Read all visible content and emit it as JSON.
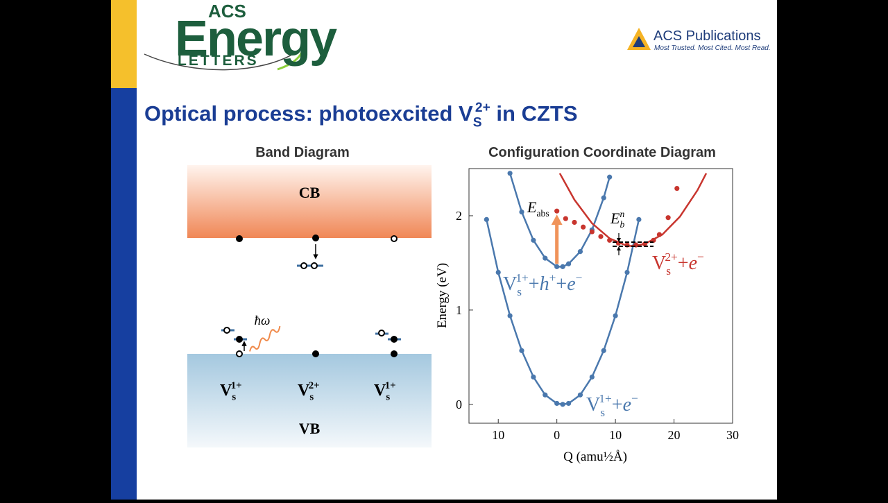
{
  "header": {
    "journal_logo": {
      "top": "ACS",
      "main": "Energy",
      "bottom": "LETTERS"
    },
    "publisher": {
      "name": "ACS Publications",
      "tagline": "Most Trusted. Most Cited. Most Read."
    }
  },
  "title": [
    {
      "text": "Optical process: photoexcited V"
    },
    {
      "text": "S",
      "style": "sub"
    },
    {
      "text": "2+",
      "style": "sup"
    },
    {
      "text": " in CZTS"
    }
  ],
  "band_diagram": {
    "title": "Band Diagram",
    "cb": "CB",
    "vb": "VB",
    "photon": "ħω",
    "defects": [
      [
        {
          "text": "V"
        },
        {
          "text": "s",
          "style": "sub"
        },
        {
          "text": "1+",
          "style": "sup"
        }
      ],
      [
        {
          "text": "V"
        },
        {
          "text": "s",
          "style": "sub"
        },
        {
          "text": "2+",
          "style": "sup"
        }
      ],
      [
        {
          "text": "V"
        },
        {
          "text": "s",
          "style": "sub"
        },
        {
          "text": "1+",
          "style": "sup"
        }
      ]
    ]
  },
  "chart_data": {
    "type": "line",
    "title": "Configuration Coordinate Diagram",
    "xlabel": "Q (amu½Å)",
    "ylabel": "Energy (eV)",
    "xlim": [
      -15,
      30
    ],
    "ylim": [
      -0.2,
      2.5
    ],
    "xticks": [
      {
        "value": -10,
        "label": "10"
      },
      0,
      10,
      20,
      30
    ],
    "yticks": [
      0,
      1,
      2
    ],
    "series": [
      {
        "label": [
          {
            "text": "V"
          },
          {
            "text": "s",
            "style": "sub"
          },
          {
            "text": "1+",
            "style": "sup"
          },
          {
            "text": "+"
          },
          {
            "text": "e",
            "style": "italic"
          },
          {
            "text": "−",
            "style": "sup"
          }
        ],
        "color": "#4a78ad",
        "line": true,
        "markers": true,
        "x": [
          -12,
          -10,
          -8,
          -6,
          -4,
          -2,
          0,
          1,
          2,
          4,
          6,
          8,
          10,
          12,
          14
        ],
        "values": [
          1.96,
          1.4,
          0.94,
          0.57,
          0.29,
          0.1,
          0.01,
          0,
          0.01,
          0.1,
          0.29,
          0.57,
          0.94,
          1.4,
          1.96
        ]
      },
      {
        "label": [
          {
            "text": "V"
          },
          {
            "text": "s",
            "style": "sub"
          },
          {
            "text": "1+",
            "style": "sup"
          },
          {
            "text": "+"
          },
          {
            "text": "h",
            "style": "italic"
          },
          {
            "text": "+",
            "style": "sup"
          },
          {
            "text": "+"
          },
          {
            "text": "e",
            "style": "italic"
          },
          {
            "text": "−",
            "style": "sup"
          }
        ],
        "color": "#4a78ad",
        "line": true,
        "markers": true,
        "x": [
          -8,
          -6,
          -4,
          -2,
          0,
          1,
          2,
          4,
          6,
          8,
          9
        ],
        "values": [
          2.45,
          2.04,
          1.74,
          1.55,
          1.46,
          1.46,
          1.49,
          1.62,
          1.85,
          2.19,
          2.41
        ]
      },
      {
        "color": "#c8352e",
        "line": true,
        "markers": false,
        "x": [
          0.5,
          3,
          6,
          9,
          12,
          13,
          15,
          18,
          21,
          24,
          25.5
        ],
        "values": [
          2.45,
          2.17,
          1.92,
          1.76,
          1.68,
          1.68,
          1.7,
          1.8,
          1.99,
          2.27,
          2.45
        ]
      },
      {
        "label": [
          {
            "text": "V"
          },
          {
            "text": "s",
            "style": "sub"
          },
          {
            "text": "2+",
            "style": "sup"
          },
          {
            "text": "+"
          },
          {
            "text": "e",
            "style": "italic"
          },
          {
            "text": "−",
            "style": "sup"
          }
        ],
        "color": "#c8352e",
        "line": false,
        "markers": true,
        "x": [
          0,
          1.5,
          3,
          4.5,
          6,
          7.5,
          9,
          10.5,
          12,
          13.5,
          15,
          16.5,
          17.5,
          19,
          20.5
        ],
        "values": [
          2.05,
          1.97,
          1.93,
          1.88,
          1.83,
          1.78,
          1.74,
          1.71,
          1.69,
          1.69,
          1.7,
          1.74,
          1.8,
          1.98,
          2.29
        ]
      }
    ],
    "annotations": [
      [
        {
          "text": "E",
          "style": "italic"
        },
        {
          "text": "abs",
          "style": "sub"
        }
      ],
      [
        {
          "text": "E",
          "style": "italic"
        },
        {
          "text": "b",
          "style": "sub-italic"
        },
        {
          "text": "n",
          "style": "sup-italic"
        }
      ]
    ]
  }
}
